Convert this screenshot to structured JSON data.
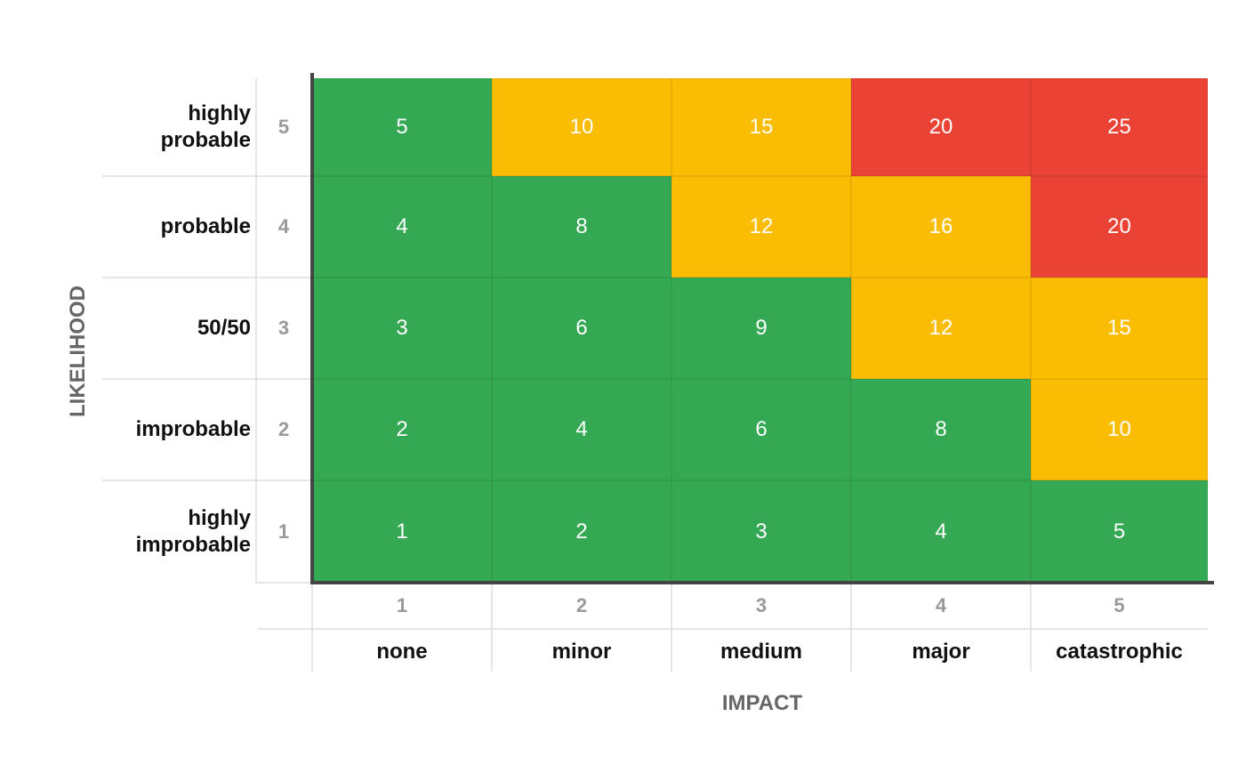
{
  "y_title": "LIKELIHOOD",
  "x_title": "IMPACT",
  "rows": [
    {
      "label": "highly probable",
      "number": 5,
      "cells": [
        5,
        10,
        15,
        20,
        25
      ],
      "colors": [
        "#34a853",
        "#fbbc04",
        "#fbbc04",
        "#ea4335",
        "#ea4335"
      ]
    },
    {
      "label": "probable",
      "number": 4,
      "cells": [
        4,
        8,
        12,
        16,
        20
      ],
      "colors": [
        "#34a853",
        "#34a853",
        "#fbbc04",
        "#fbbc04",
        "#ea4335"
      ]
    },
    {
      "label": "50/50",
      "number": 3,
      "cells": [
        3,
        6,
        9,
        12,
        15
      ],
      "colors": [
        "#34a853",
        "#34a853",
        "#34a853",
        "#fbbc04",
        "#fbbc04"
      ]
    },
    {
      "label": "improbable",
      "number": 2,
      "cells": [
        2,
        4,
        6,
        8,
        10
      ],
      "colors": [
        "#34a853",
        "#34a853",
        "#34a853",
        "#34a853",
        "#fbbc04"
      ]
    },
    {
      "label": "highly improbable",
      "number": 1,
      "cells": [
        1,
        2,
        3,
        4,
        5
      ],
      "colors": [
        "#34a853",
        "#34a853",
        "#34a853",
        "#34a853",
        "#34a853"
      ]
    }
  ],
  "columns": [
    {
      "number": 1,
      "label": "none"
    },
    {
      "number": 2,
      "label": "minor"
    },
    {
      "number": 3,
      "label": "medium"
    },
    {
      "number": 4,
      "label": "major"
    },
    {
      "number": 5,
      "label": "catastrophic"
    }
  ]
}
